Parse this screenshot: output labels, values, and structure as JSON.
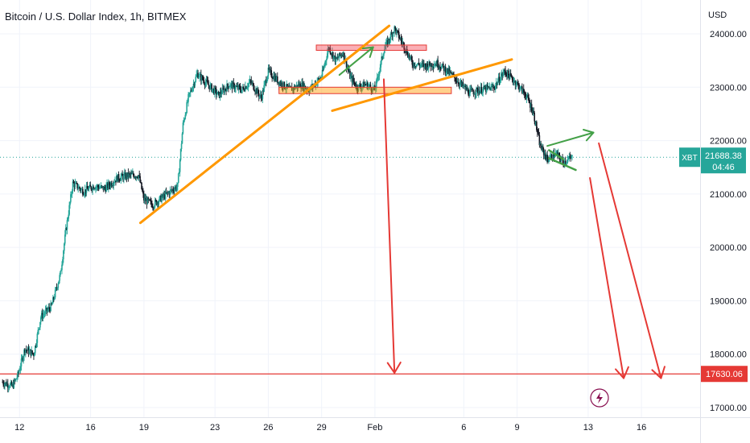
{
  "chart_data": {
    "type": "candlestick",
    "title": "Bitcoin / U.S. Dollar Index, 1h, BITMEX",
    "currency": "USD",
    "symbol": "XBT",
    "current_price": "21688.38",
    "countdown": "04:46",
    "level_label": "17630.06",
    "level": 17630.06,
    "ylim": [
      16700,
      24500
    ],
    "y_ticks": [
      "24000.00",
      "23000.00",
      "22000.00",
      "21000.00",
      "20000.00",
      "19000.00",
      "18000.00",
      "17000.00"
    ],
    "x_ticks": [
      "12",
      "16",
      "19",
      "23",
      "26",
      "29",
      "Feb",
      "6",
      "9",
      "13",
      "16"
    ],
    "x_tick_days": [
      12,
      16,
      19,
      23,
      26,
      29,
      32,
      37,
      40,
      44,
      47
    ],
    "xlim_days": [
      10.9,
      50.3
    ],
    "price_path": [
      [
        11.0,
        17480
      ],
      [
        11.6,
        17400
      ],
      [
        11.9,
        17600
      ],
      [
        12.3,
        18100
      ],
      [
        12.8,
        18000
      ],
      [
        13.2,
        18700
      ],
      [
        13.8,
        18900
      ],
      [
        14.3,
        19500
      ],
      [
        14.6,
        20300
      ],
      [
        15.0,
        21200
      ],
      [
        15.6,
        21050
      ],
      [
        16.2,
        21150
      ],
      [
        16.8,
        21100
      ],
      [
        17.5,
        21300
      ],
      [
        18.2,
        21350
      ],
      [
        18.7,
        21350
      ],
      [
        19.0,
        20900
      ],
      [
        19.5,
        20800
      ],
      [
        20.3,
        21000
      ],
      [
        20.9,
        21150
      ],
      [
        21.2,
        22300
      ],
      [
        21.5,
        22800
      ],
      [
        22.0,
        23250
      ],
      [
        22.6,
        23050
      ],
      [
        23.2,
        22850
      ],
      [
        23.8,
        23050
      ],
      [
        24.5,
        22950
      ],
      [
        25.0,
        23100
      ],
      [
        25.6,
        22800
      ],
      [
        26.0,
        23300
      ],
      [
        26.6,
        23100
      ],
      [
        27.2,
        22950
      ],
      [
        27.8,
        23050
      ],
      [
        28.3,
        22950
      ],
      [
        29.0,
        23200
      ],
      [
        29.4,
        23750
      ],
      [
        29.8,
        23500
      ],
      [
        30.2,
        23650
      ],
      [
        30.6,
        23200
      ],
      [
        31.0,
        23000
      ],
      [
        31.5,
        23050
      ],
      [
        32.0,
        22950
      ],
      [
        32.5,
        23700
      ],
      [
        33.1,
        24100
      ],
      [
        33.6,
        23800
      ],
      [
        34.1,
        23450
      ],
      [
        34.8,
        23400
      ],
      [
        35.5,
        23450
      ],
      [
        36.1,
        23300
      ],
      [
        36.7,
        23100
      ],
      [
        37.3,
        22900
      ],
      [
        38.0,
        22950
      ],
      [
        38.7,
        23000
      ],
      [
        39.3,
        23300
      ],
      [
        39.9,
        23100
      ],
      [
        40.5,
        22850
      ],
      [
        40.9,
        22550
      ],
      [
        41.3,
        21900
      ],
      [
        41.7,
        21650
      ],
      [
        42.2,
        21750
      ],
      [
        42.6,
        21600
      ],
      [
        43.1,
        21680
      ]
    ],
    "annotations": {
      "orange_lines": [
        [
          [
            18.8,
            20460
          ],
          [
            32.8,
            24150
          ]
        ],
        [
          [
            29.6,
            22560
          ],
          [
            39.7,
            23520
          ]
        ]
      ],
      "orange_boxes": [
        [
          [
            26.6,
            22880
          ],
          [
            36.3,
            23000
          ]
        ]
      ],
      "red_boxes": [
        [
          [
            28.7,
            23690
          ],
          [
            34.9,
            23790
          ]
        ]
      ],
      "red_lines": [
        [
          [
            17630.06
          ]
        ]
      ],
      "green_triangles": [
        [
          [
            41.8,
            21820
          ],
          [
            43.3,
            21450
          ],
          [
            42.6,
            21620
          ]
        ]
      ],
      "green_arrows": [
        [
          [
            30.0,
            23230
          ],
          [
            31.9,
            23750
          ]
        ],
        [
          [
            41.7,
            21900
          ],
          [
            44.3,
            22150
          ]
        ]
      ],
      "red_arrows": [
        [
          [
            32.5,
            23150
          ],
          [
            33.1,
            17650
          ]
        ],
        [
          [
            44.1,
            21300
          ],
          [
            46.0,
            17550
          ]
        ],
        [
          [
            44.6,
            21950
          ],
          [
            48.1,
            17550
          ]
        ]
      ]
    }
  }
}
